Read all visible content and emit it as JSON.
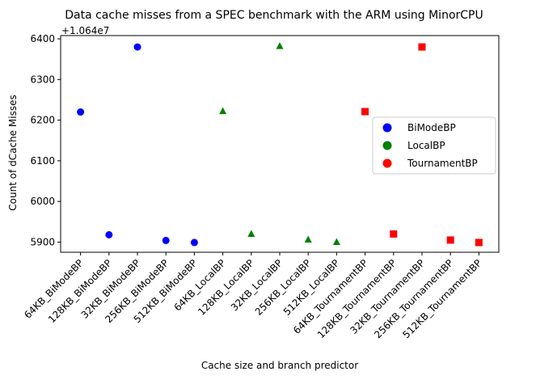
{
  "chart_data": {
    "type": "scatter",
    "title": "Data cache misses from a SPEC benchmark with the ARM using MinorCPU",
    "xlabel": "Cache size and branch predictor",
    "ylabel": "Count of dCache Misses",
    "offset_label": "+1.064e7",
    "offset": 10640000,
    "ylim": [
      5875,
      6408
    ],
    "yticks": [
      5900,
      6000,
      6100,
      6200,
      6300,
      6400
    ],
    "ytick_labels": [
      "5900",
      "6000",
      "6100",
      "6200",
      "6300",
      "6400"
    ],
    "categories": [
      "64KB_BiModeBP",
      "128KB_BiModeBP",
      "32KB_BiModeBP",
      "256KB_BiModeBP",
      "512KB_BiModeBP",
      "64KB_LocalBP",
      "128KB_LocalBP",
      "32KB_LocalBP",
      "256KB_LocalBP",
      "512KB_LocalBP",
      "64KB_TournamentBP",
      "128KB_TournamentBP",
      "32KB_TournamentBP",
      "256KB_TournamentBP",
      "512KB_TournamentBP"
    ],
    "legend_position": "center-right",
    "grid": false,
    "series": [
      {
        "name": "BiModeBP",
        "color": "#0000ff",
        "marker": "circle",
        "x": [
          "64KB_BiModeBP",
          "128KB_BiModeBP",
          "32KB_BiModeBP",
          "256KB_BiModeBP",
          "512KB_BiModeBP"
        ],
        "values": [
          6220,
          5918,
          6380,
          5904,
          5899
        ]
      },
      {
        "name": "LocalBP",
        "color": "#008000",
        "marker": "triangle",
        "x": [
          "64KB_LocalBP",
          "128KB_LocalBP",
          "32KB_LocalBP",
          "256KB_LocalBP",
          "512KB_LocalBP"
        ],
        "values": [
          6222,
          5920,
          6382,
          5906,
          5900
        ]
      },
      {
        "name": "TournamentBP",
        "color": "#ff0000",
        "marker": "square",
        "x": [
          "64KB_TournamentBP",
          "128KB_TournamentBP",
          "32KB_TournamentBP",
          "256KB_TournamentBP",
          "512KB_TournamentBP"
        ],
        "values": [
          6221,
          5920,
          6380,
          5905,
          5899
        ]
      }
    ]
  }
}
